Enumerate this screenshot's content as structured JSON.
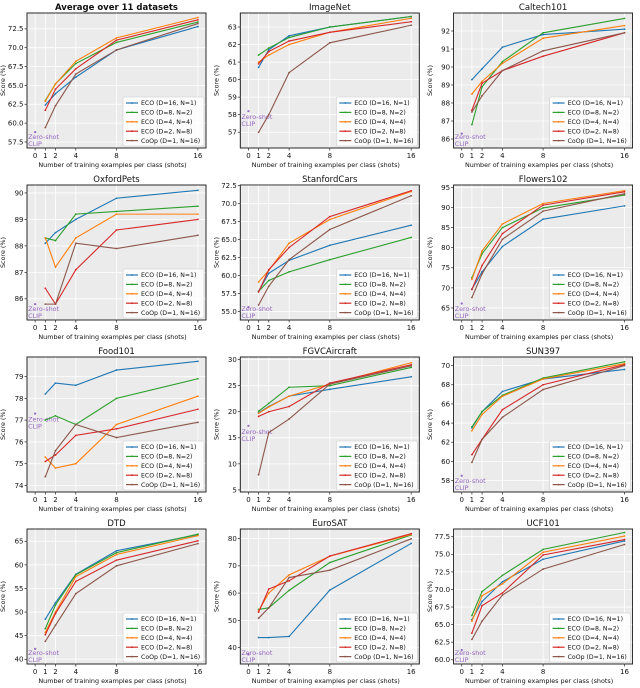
{
  "chart_data": {
    "type": "line",
    "shared": {
      "x": [
        1,
        2,
        4,
        8,
        16
      ],
      "xticks": [
        0,
        1,
        2,
        4,
        8,
        16
      ],
      "xlabel": "Number of training examples per class (shots)",
      "ylabel": "Score (%)",
      "zero_shot_label_line1": "Zero-shot",
      "zero_shot_label_line2": "CLIP",
      "legend_placement": "bottom-right",
      "grid": true,
      "series_names": [
        "ECO (D=16, N=1)",
        "ECO (D=8, N=2)",
        "ECO (D=4, N=4)",
        "ECO (D=2, N=8)",
        "CoOp (D=1, N=16)"
      ],
      "series_colors": [
        "#1f77b4",
        "#2ca02c",
        "#ff7f0e",
        "#d62728",
        "#8c564b"
      ],
      "zero_shot_color": "#9467bd"
    },
    "panels": [
      {
        "title": "Average over 11 datasets",
        "bold": true,
        "ylim": [
          56.7,
          74.6
        ],
        "yticks": [
          "57.5",
          "60.0",
          "62.5",
          "65.0",
          "67.5",
          "70.0",
          "72.5"
        ],
        "zero_shot": 58.8,
        "series": [
          [
            62.4,
            63.9,
            66.1,
            69.7,
            72.8
          ],
          [
            63.0,
            65.2,
            67.9,
            70.7,
            73.4
          ],
          [
            62.9,
            65.2,
            68.2,
            71.3,
            74.0
          ],
          [
            61.7,
            64.5,
            67.2,
            71.0,
            73.7
          ],
          [
            59.4,
            62.3,
            66.5,
            69.7,
            73.2
          ]
        ]
      },
      {
        "title": "ImageNet",
        "ylim": [
          56.1,
          63.8
        ],
        "yticks": [
          "57",
          "58",
          "59",
          "60",
          "61",
          "62",
          "63"
        ],
        "zero_shot": 58.2,
        "series": [
          [
            60.7,
            61.7,
            62.5,
            63.0,
            63.6
          ],
          [
            61.4,
            61.8,
            62.4,
            63.0,
            63.6
          ],
          [
            61.0,
            61.4,
            62.0,
            62.7,
            63.5
          ],
          [
            60.9,
            61.6,
            62.2,
            62.7,
            63.3
          ],
          [
            57.0,
            58.0,
            60.4,
            62.1,
            63.1
          ]
        ]
      },
      {
        "title": "Caltech101",
        "ylim": [
          85.5,
          93.0
        ],
        "yticks": [
          "86",
          "87",
          "88",
          "89",
          "90",
          "91",
          "92"
        ],
        "zero_shot": 86.3,
        "series": [
          [
            89.3,
            89.9,
            91.1,
            91.8,
            92.1
          ],
          [
            86.8,
            88.9,
            90.3,
            91.9,
            92.7
          ],
          [
            88.5,
            89.2,
            90.2,
            91.6,
            92.3
          ],
          [
            87.6,
            89.1,
            89.8,
            90.6,
            91.9
          ],
          [
            87.5,
            88.4,
            89.8,
            90.9,
            91.9
          ]
        ]
      },
      {
        "title": "OxfordPets",
        "ylim": [
          85.2,
          90.3
        ],
        "yticks": [
          "86",
          "87",
          "88",
          "89",
          "90"
        ],
        "zero_shot": 85.8,
        "series": [
          [
            88.1,
            88.5,
            89.0,
            89.8,
            90.1
          ],
          [
            88.3,
            88.2,
            89.2,
            89.3,
            89.5
          ],
          [
            88.3,
            87.2,
            88.3,
            89.2,
            89.2
          ],
          [
            86.4,
            85.8,
            87.1,
            88.6,
            89.0
          ],
          [
            85.8,
            85.8,
            88.1,
            87.9,
            88.4
          ]
        ]
      },
      {
        "title": "StanfordCars",
        "ylim": [
          53.8,
          72.6
        ],
        "yticks": [
          "55.0",
          "57.5",
          "60.0",
          "62.5",
          "65.0",
          "67.5",
          "70.0",
          "72.5"
        ],
        "zero_shot": 55.6,
        "series": [
          [
            57.8,
            60.3,
            62.1,
            64.2,
            67.0
          ],
          [
            57.8,
            59.3,
            60.5,
            62.2,
            65.3
          ],
          [
            59.1,
            60.7,
            64.5,
            67.8,
            71.7
          ],
          [
            57.7,
            60.8,
            63.9,
            68.2,
            71.8
          ],
          [
            55.9,
            58.5,
            62.2,
            66.4,
            71.1
          ]
        ]
      },
      {
        "title": "Flowers102",
        "ylim": [
          62.0,
          95.6
        ],
        "yticks": [
          "65",
          "70",
          "75",
          "80",
          "85",
          "90",
          "95"
        ],
        "zero_shot": 66.1,
        "series": [
          [
            69.7,
            74.0,
            80.3,
            87.1,
            90.4
          ],
          [
            72.5,
            78.5,
            85.0,
            89.9,
            93.1
          ],
          [
            72.1,
            79.2,
            85.9,
            91.0,
            94.2
          ],
          [
            69.6,
            75.6,
            83.5,
            90.6,
            93.9
          ],
          [
            67.6,
            73.5,
            82.1,
            89.1,
            93.4
          ]
        ]
      },
      {
        "title": "Food101",
        "ylim": [
          73.7,
          79.9
        ],
        "yticks": [
          "74",
          "75",
          "76",
          "77",
          "78",
          "79"
        ],
        "zero_shot": 77.3,
        "series": [
          [
            78.2,
            78.7,
            78.6,
            79.3,
            79.7
          ],
          [
            77.0,
            77.2,
            76.8,
            78.0,
            78.9
          ],
          [
            75.3,
            74.8,
            75.0,
            76.8,
            78.1
          ],
          [
            75.1,
            75.4,
            76.3,
            76.6,
            77.5
          ],
          [
            74.4,
            75.6,
            76.8,
            76.2,
            76.9
          ]
        ]
      },
      {
        "title": "FGVCAircraft",
        "ylim": [
          4.6,
          30.5
        ],
        "yticks": [
          "5",
          "10",
          "15",
          "20",
          "25",
          "30"
        ],
        "zero_shot": 17.3,
        "series": [
          [
            19.8,
            21.0,
            23.0,
            24.3,
            26.7
          ],
          [
            20.1,
            21.6,
            24.7,
            25.0,
            28.5
          ],
          [
            19.7,
            20.9,
            23.0,
            25.3,
            29.4
          ],
          [
            19.1,
            20.0,
            21.0,
            25.5,
            29.0
          ],
          [
            7.9,
            16.0,
            18.6,
            25.3,
            28.8
          ]
        ]
      },
      {
        "title": "SUN397",
        "ylim": [
          56.8,
          70.9
        ],
        "yticks": [
          "58",
          "60",
          "62",
          "64",
          "66",
          "68",
          "70"
        ],
        "zero_shot": 58.5,
        "series": [
          [
            63.5,
            65.2,
            67.3,
            68.6,
            69.6
          ],
          [
            63.6,
            65.2,
            66.9,
            68.7,
            70.4
          ],
          [
            63.2,
            64.9,
            66.8,
            68.6,
            70.2
          ],
          [
            60.7,
            62.3,
            65.4,
            68.0,
            70.1
          ],
          [
            59.9,
            62.3,
            64.6,
            67.5,
            70.0
          ]
        ]
      },
      {
        "title": "DTD",
        "ylim": [
          39.0,
          67.6
        ],
        "yticks": [
          "40",
          "45",
          "50",
          "55",
          "60",
          "65"
        ],
        "zero_shot": 42.2,
        "series": [
          [
            48.5,
            52.0,
            58.0,
            63.0,
            66.4
          ],
          [
            46.5,
            51.5,
            57.9,
            62.6,
            66.5
          ],
          [
            45.7,
            50.0,
            57.5,
            62.2,
            66.2
          ],
          [
            45.2,
            49.7,
            56.5,
            61.0,
            65.1
          ],
          [
            43.8,
            47.2,
            53.9,
            59.8,
            64.5
          ]
        ]
      },
      {
        "title": "EuroSAT",
        "ylim": [
          34.0,
          83.5
        ],
        "yticks": [
          "40",
          "50",
          "60",
          "70",
          "80"
        ],
        "zero_shot": 37.5,
        "series": [
          [
            43.7,
            43.7,
            44.1,
            61.1,
            78.2
          ],
          [
            54.0,
            54.6,
            61.0,
            71.2,
            81.3
          ],
          [
            53.5,
            60.0,
            66.7,
            73.5,
            81.5
          ],
          [
            53.0,
            61.5,
            64.5,
            73.6,
            81.8
          ],
          [
            50.8,
            54.6,
            65.7,
            68.4,
            79.9
          ]
        ]
      },
      {
        "title": "UCF101",
        "ylim": [
          59.4,
          78.6
        ],
        "yticks": [
          "60.0",
          "62.5",
          "65.0",
          "67.5",
          "70.0",
          "72.5",
          "75.0",
          "77.5"
        ],
        "zero_shot": 61.4,
        "series": [
          [
            65.7,
            68.3,
            71.1,
            74.3,
            76.9
          ],
          [
            66.3,
            69.7,
            72.0,
            75.7,
            78.1
          ],
          [
            65.5,
            69.1,
            70.8,
            75.3,
            77.6
          ],
          [
            63.8,
            67.7,
            69.5,
            74.9,
            77.1
          ],
          [
            62.9,
            65.5,
            69.2,
            72.9,
            76.4
          ]
        ]
      }
    ]
  }
}
